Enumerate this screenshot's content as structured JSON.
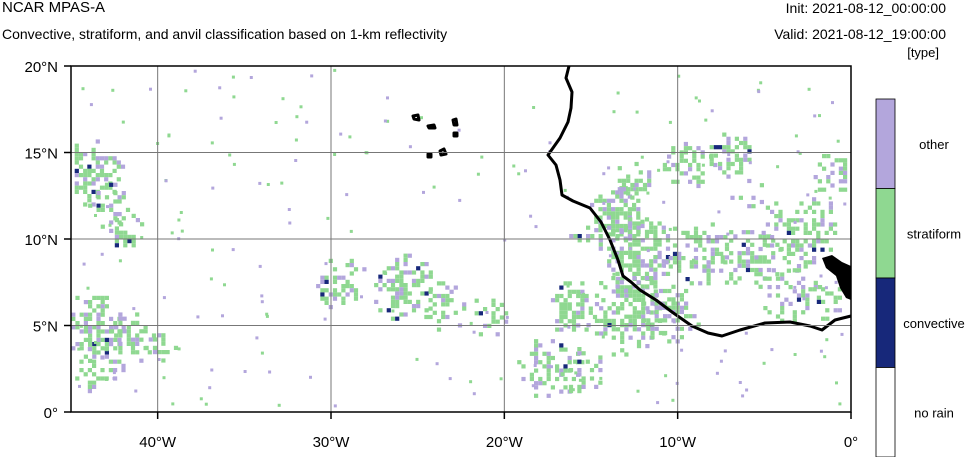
{
  "header": {
    "model": "NCAR MPAS-A",
    "description": "Convective, stratiform, and anvil classification based on 1-km reflectivity",
    "init": "Init: 2021-08-12_00:00:00",
    "valid": "Valid: 2021-08-12_19:00:00",
    "unit": "[type]"
  },
  "axes": {
    "lon_ticks": [
      -40,
      -30,
      -20,
      -10,
      0
    ],
    "lon_labels": [
      "40°W",
      "30°W",
      "20°W",
      "10°W",
      "0°"
    ],
    "lat_ticks": [
      0,
      5,
      10,
      15,
      20
    ],
    "lat_labels": [
      "0°",
      "5°N",
      "10°N",
      "15°N",
      "20°N"
    ],
    "lon_range": [
      -45,
      0
    ],
    "lat_range": [
      0,
      20
    ],
    "grid": true
  },
  "legend": {
    "items": [
      {
        "label": "other",
        "color": "#b3a6dc"
      },
      {
        "label": "stratiform",
        "color": "#8fd891"
      },
      {
        "label": "convective",
        "color": "#17287a"
      },
      {
        "label": "no rain",
        "color": "#ffffff"
      }
    ]
  }
}
